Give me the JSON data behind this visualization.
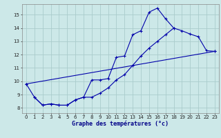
{
  "title": "Graphe des températures (°c)",
  "bg_color": "#cce8e8",
  "grid_color": "#aacccc",
  "line_color": "#0000aa",
  "xlim": [
    -0.5,
    23.5
  ],
  "ylim": [
    7.6,
    15.8
  ],
  "xticks": [
    0,
    1,
    2,
    3,
    4,
    5,
    6,
    7,
    8,
    9,
    10,
    11,
    12,
    13,
    14,
    15,
    16,
    17,
    18,
    19,
    20,
    21,
    22,
    23
  ],
  "yticks": [
    8,
    9,
    10,
    11,
    12,
    13,
    14,
    15
  ],
  "series1_x": [
    0,
    1,
    2,
    3,
    4,
    5,
    6,
    7,
    8,
    9,
    10,
    11,
    12,
    13,
    14,
    15,
    16,
    17,
    18
  ],
  "series1_y": [
    9.8,
    8.8,
    8.2,
    8.3,
    8.2,
    8.2,
    8.6,
    8.8,
    10.1,
    10.1,
    10.2,
    11.8,
    11.9,
    13.5,
    13.8,
    15.2,
    15.5,
    14.7,
    14.0
  ],
  "series2_x": [
    1,
    2,
    3,
    4,
    5,
    6,
    7,
    8,
    9,
    10,
    11,
    12,
    13,
    14,
    15,
    16,
    17,
    18,
    19,
    20,
    21,
    22,
    23
  ],
  "series2_y": [
    8.8,
    8.2,
    8.3,
    8.2,
    8.2,
    8.6,
    8.8,
    8.8,
    9.1,
    9.5,
    10.1,
    10.5,
    11.2,
    11.9,
    12.5,
    13.0,
    13.5,
    14.0,
    13.8,
    13.55,
    13.35,
    12.3,
    12.25
  ],
  "series3_x": [
    0,
    23
  ],
  "series3_y": [
    9.8,
    12.25
  ]
}
